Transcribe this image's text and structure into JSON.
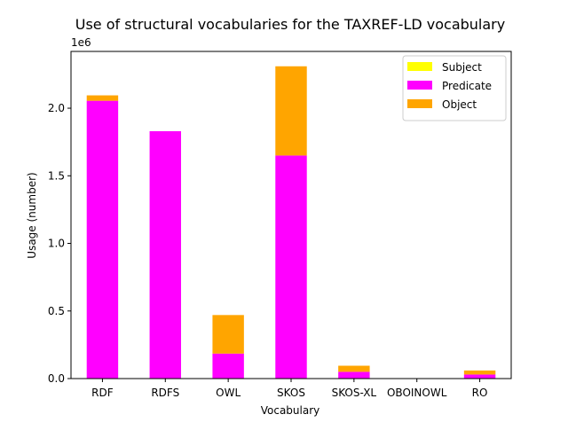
{
  "chart_data": {
    "type": "bar",
    "stacked": true,
    "title": "Use of structural vocabularies for the TAXREF-LD vocabulary",
    "xlabel": "Vocabulary",
    "ylabel": "Usage (number)",
    "offset_text": "1e6",
    "categories": [
      "RDF",
      "RDFS",
      "OWL",
      "SKOS",
      "SKOS-XL",
      "OBOINOWL",
      "RO"
    ],
    "series": [
      {
        "name": "Subject",
        "color": "#ffff00",
        "values": [
          0,
          0,
          0,
          0,
          0,
          0,
          0
        ]
      },
      {
        "name": "Predicate",
        "color": "#ff00ff",
        "values": [
          2055000,
          1830000,
          185000,
          1650000,
          50000,
          0,
          30000
        ]
      },
      {
        "name": "Object",
        "color": "#ffa500",
        "values": [
          40000,
          0,
          285000,
          660000,
          45000,
          0,
          30000
        ]
      }
    ],
    "ylim": [
      0,
      2420000
    ],
    "yticks": [
      0,
      500000,
      1000000,
      1500000,
      2000000
    ],
    "ytick_labels": [
      "0.0",
      "0.5",
      "1.0",
      "1.5",
      "2.0"
    ],
    "legend_position": "top-right",
    "grid": false
  }
}
